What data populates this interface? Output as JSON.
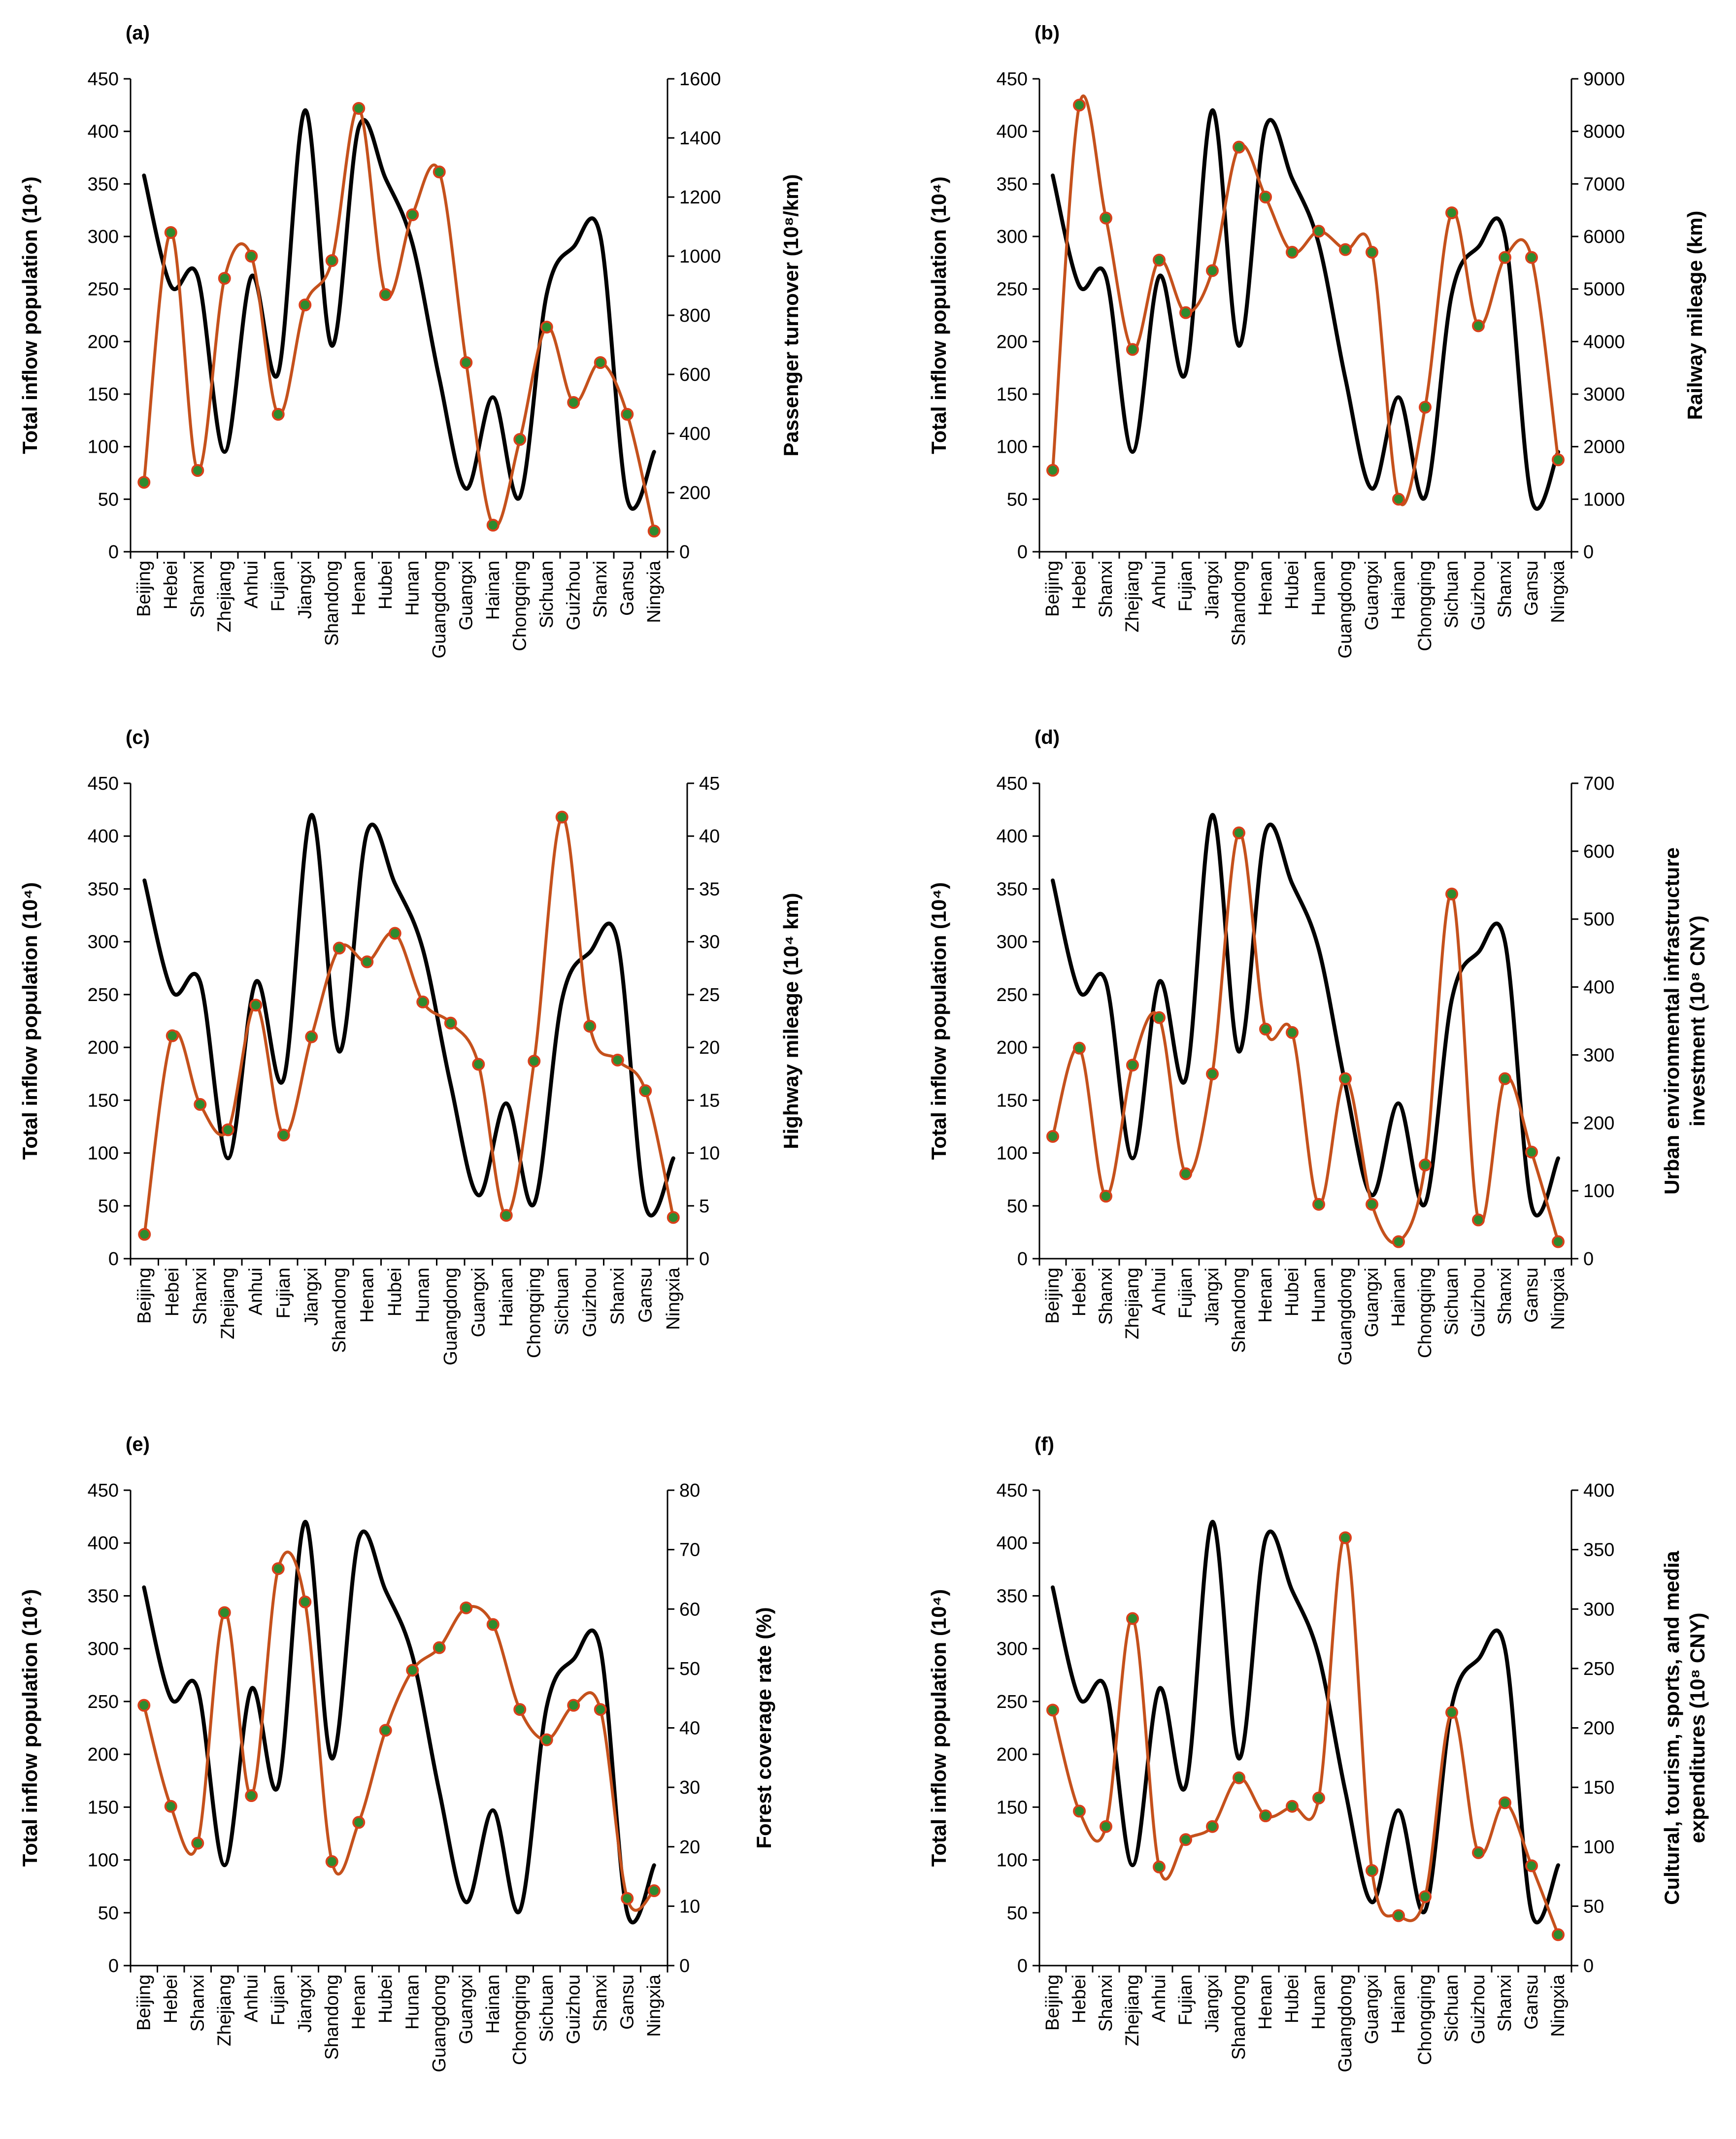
{
  "chart_data": [
    {
      "panel": "(a)",
      "type": "line",
      "categories": [
        "Beijing",
        "Hebei",
        "Shanxi",
        "Zhejiang",
        "Anhui",
        "Fujian",
        "Jiangxi",
        "Shandong",
        "Henan",
        "Hubei",
        "Hunan",
        "Guangdong",
        "Guangxi",
        "Hainan",
        "Chongqing",
        "Sichuan",
        "Guizhou",
        "Shanxi",
        "Gansu",
        "Ningxia"
      ],
      "y_left": {
        "label": "Total inflow population (10⁴)",
        "lim": [
          0,
          450
        ],
        "ticks": [
          "0",
          "50",
          "100",
          "150",
          "200",
          "250",
          "300",
          "350",
          "400",
          "450"
        ]
      },
      "y_right": {
        "label": "Passenger turnover (10⁸/km)",
        "lim": [
          0,
          1600
        ],
        "ticks": [
          "0",
          "200",
          "400",
          "600",
          "800",
          "1000",
          "1200",
          "1400",
          "1600"
        ]
      },
      "series": [
        {
          "name": "Total inflow population",
          "axis": "left",
          "color": "#000000",
          "markers": false,
          "values": [
            358,
            253,
            262,
            95,
            262,
            170,
            420,
            196,
            404,
            355,
            293,
            165,
            60,
            147,
            52,
            245,
            290,
            300,
            50,
            95
          ]
        },
        {
          "name": "Passenger turnover",
          "axis": "right",
          "color": "#c5511c",
          "markers": true,
          "values": [
            235,
            1080,
            275,
            925,
            1000,
            465,
            835,
            985,
            1500,
            870,
            1140,
            1285,
            640,
            90,
            380,
            760,
            505,
            640,
            465,
            70
          ]
        }
      ]
    },
    {
      "panel": "(b)",
      "type": "line",
      "categories": [
        "Beijing",
        "Hebei",
        "Shanxi",
        "Zhejiang",
        "Anhui",
        "Fujian",
        "Jiangxi",
        "Shandong",
        "Henan",
        "Hubei",
        "Hunan",
        "Guangdong",
        "Guangxi",
        "Hainan",
        "Chongqing",
        "Sichuan",
        "Guizhou",
        "Shanxi",
        "Gansu",
        "Ningxia"
      ],
      "y_left": {
        "label": "Total inflow population (10⁴)",
        "lim": [
          0,
          450
        ],
        "ticks": [
          "0",
          "50",
          "100",
          "150",
          "200",
          "250",
          "300",
          "350",
          "400",
          "450"
        ]
      },
      "y_right": {
        "label": "Railway mileage (km)",
        "lim": [
          0,
          9000
        ],
        "ticks": [
          "0",
          "1000",
          "2000",
          "3000",
          "4000",
          "5000",
          "6000",
          "7000",
          "8000",
          "9000"
        ]
      },
      "series": [
        {
          "name": "Total inflow population",
          "axis": "left",
          "color": "#000000",
          "markers": false,
          "values": [
            358,
            253,
            262,
            95,
            262,
            170,
            420,
            196,
            404,
            355,
            293,
            165,
            60,
            147,
            52,
            245,
            290,
            300,
            50,
            95
          ]
        },
        {
          "name": "Railway mileage",
          "axis": "right",
          "color": "#c5511c",
          "markers": true,
          "values": [
            1550,
            8500,
            6350,
            3850,
            5550,
            4550,
            5350,
            7700,
            6750,
            5700,
            6100,
            5750,
            5700,
            1000,
            2750,
            6450,
            4300,
            5600,
            5600,
            1750
          ]
        }
      ]
    },
    {
      "panel": "(c)",
      "type": "line",
      "categories": [
        "Beijing",
        "Hebei",
        "Shanxi",
        "Zhejiang",
        "Anhui",
        "Fujian",
        "Jiangxi",
        "Shandong",
        "Henan",
        "Hubei",
        "Hunan",
        "Guangdong",
        "Guangxi",
        "Hainan",
        "Chongqing",
        "Sichuan",
        "Guizhou",
        "Shanxi",
        "Gansu",
        "Ningxia"
      ],
      "y_left": {
        "label": "Total inflow population (10⁴)",
        "lim": [
          0,
          450
        ],
        "ticks": [
          "0",
          "50",
          "100",
          "150",
          "200",
          "250",
          "300",
          "350",
          "400",
          "450"
        ]
      },
      "y_right": {
        "label": "Highway mileage (10⁴ km)",
        "lim": [
          0,
          45
        ],
        "ticks": [
          "0",
          "5",
          "10",
          "15",
          "20",
          "25",
          "30",
          "35",
          "40",
          "45"
        ]
      },
      "series": [
        {
          "name": "Total inflow population",
          "axis": "left",
          "color": "#000000",
          "markers": false,
          "values": [
            358,
            253,
            262,
            95,
            262,
            170,
            420,
            196,
            404,
            355,
            293,
            165,
            60,
            147,
            52,
            245,
            290,
            300,
            50,
            95
          ]
        },
        {
          "name": "Highway mileage",
          "axis": "right",
          "color": "#c5511c",
          "markers": true,
          "values": [
            2.3,
            21.1,
            14.6,
            12.2,
            24.0,
            11.7,
            21.0,
            29.4,
            28.1,
            30.8,
            24.3,
            22.3,
            18.4,
            4.1,
            18.7,
            41.8,
            22.0,
            18.8,
            15.9,
            3.9
          ]
        }
      ]
    },
    {
      "panel": "(d)",
      "type": "line",
      "categories": [
        "Beijing",
        "Hebei",
        "Shanxi",
        "Zhejiang",
        "Anhui",
        "Fujian",
        "Jiangxi",
        "Shandong",
        "Henan",
        "Hubei",
        "Hunan",
        "Guangdong",
        "Guangxi",
        "Hainan",
        "Chongqing",
        "Sichuan",
        "Guizhou",
        "Shanxi",
        "Gansu",
        "Ningxia"
      ],
      "y_left": {
        "label": "Total inflow population (10⁴)",
        "lim": [
          0,
          450
        ],
        "ticks": [
          "0",
          "50",
          "100",
          "150",
          "200",
          "250",
          "300",
          "350",
          "400",
          "450"
        ]
      },
      "y_right": {
        "label_lines": [
          "Urban environmental infrastructure",
          "investment (10⁸ CNY)"
        ],
        "lim": [
          0,
          700
        ],
        "ticks": [
          "0",
          "100",
          "200",
          "300",
          "400",
          "500",
          "600",
          "700"
        ]
      },
      "series": [
        {
          "name": "Total inflow population",
          "axis": "left",
          "color": "#000000",
          "markers": false,
          "values": [
            358,
            253,
            262,
            95,
            262,
            170,
            420,
            196,
            404,
            355,
            293,
            165,
            60,
            147,
            52,
            245,
            290,
            300,
            50,
            95
          ]
        },
        {
          "name": "Urban environmental infrastructure investment",
          "axis": "right",
          "color": "#c5511c",
          "markers": true,
          "values": [
            180,
            310,
            92,
            285,
            355,
            125,
            272,
            627,
            338,
            333,
            80,
            265,
            80,
            25,
            138,
            537,
            57,
            265,
            157,
            25
          ]
        }
      ]
    },
    {
      "panel": "(e)",
      "type": "line",
      "categories": [
        "Beijing",
        "Hebei",
        "Shanxi",
        "Zhejiang",
        "Anhui",
        "Fujian",
        "Jiangxi",
        "Shandong",
        "Henan",
        "Hubei",
        "Hunan",
        "Guangdong",
        "Guangxi",
        "Hainan",
        "Chongqing",
        "Sichuan",
        "Guizhou",
        "Shanxi",
        "Gansu",
        "Ningxia"
      ],
      "y_left": {
        "label": "Total inflow population (10⁴)",
        "lim": [
          0,
          450
        ],
        "ticks": [
          "0",
          "50",
          "100",
          "150",
          "200",
          "250",
          "300",
          "350",
          "400",
          "450"
        ]
      },
      "y_right": {
        "label": "Forest coverage rate (%)",
        "lim": [
          0,
          80
        ],
        "ticks": [
          "0",
          "10",
          "20",
          "30",
          "40",
          "50",
          "60",
          "70",
          "80"
        ]
      },
      "series": [
        {
          "name": "Total inflow population",
          "axis": "left",
          "color": "#000000",
          "markers": false,
          "values": [
            358,
            253,
            262,
            95,
            262,
            170,
            420,
            196,
            404,
            355,
            293,
            165,
            60,
            147,
            52,
            245,
            290,
            300,
            50,
            95
          ]
        },
        {
          "name": "Forest coverage rate",
          "axis": "right",
          "color": "#c5511c",
          "markers": true,
          "values": [
            43.8,
            26.8,
            20.6,
            59.4,
            28.6,
            66.8,
            61.2,
            17.5,
            24.1,
            39.6,
            49.7,
            53.5,
            60.2,
            57.4,
            43.1,
            38.0,
            43.8,
            43.1,
            11.3,
            12.6
          ]
        }
      ]
    },
    {
      "panel": "(f)",
      "type": "line",
      "categories": [
        "Beijing",
        "Hebei",
        "Shanxi",
        "Zhejiang",
        "Anhui",
        "Fujian",
        "Jiangxi",
        "Shandong",
        "Henan",
        "Hubei",
        "Hunan",
        "Guangdong",
        "Guangxi",
        "Hainan",
        "Chongqing",
        "Sichuan",
        "Guizhou",
        "Shanxi",
        "Gansu",
        "Ningxia"
      ],
      "y_left": {
        "label": "Total inflow population (10⁴)",
        "lim": [
          0,
          450
        ],
        "ticks": [
          "0",
          "50",
          "100",
          "150",
          "200",
          "250",
          "300",
          "350",
          "400",
          "450"
        ]
      },
      "y_right": {
        "label_lines": [
          "Cultural, tourism, sports, and media",
          "expenditures (10⁸ CNY)"
        ],
        "lim": [
          0,
          400
        ],
        "ticks": [
          "0",
          "50",
          "100",
          "150",
          "200",
          "250",
          "300",
          "350",
          "400"
        ]
      },
      "series": [
        {
          "name": "Total inflow population",
          "axis": "left",
          "color": "#000000",
          "markers": false,
          "values": [
            358,
            253,
            262,
            95,
            262,
            170,
            420,
            196,
            404,
            355,
            293,
            165,
            60,
            147,
            52,
            245,
            290,
            300,
            50,
            95
          ]
        },
        {
          "name": "Cultural, tourism, sports, and media expenditures",
          "axis": "right",
          "color": "#c5511c",
          "markers": true,
          "values": [
            215,
            130,
            117,
            292,
            83,
            106,
            117,
            158,
            126,
            134,
            141,
            360,
            80,
            42,
            58,
            213,
            95,
            137,
            84,
            26
          ]
        }
      ]
    }
  ],
  "colors": {
    "primary": "#000000",
    "secondary": "#c5511c",
    "marker_fill": "#2e8b2e",
    "marker_edge": "#d9401a"
  }
}
